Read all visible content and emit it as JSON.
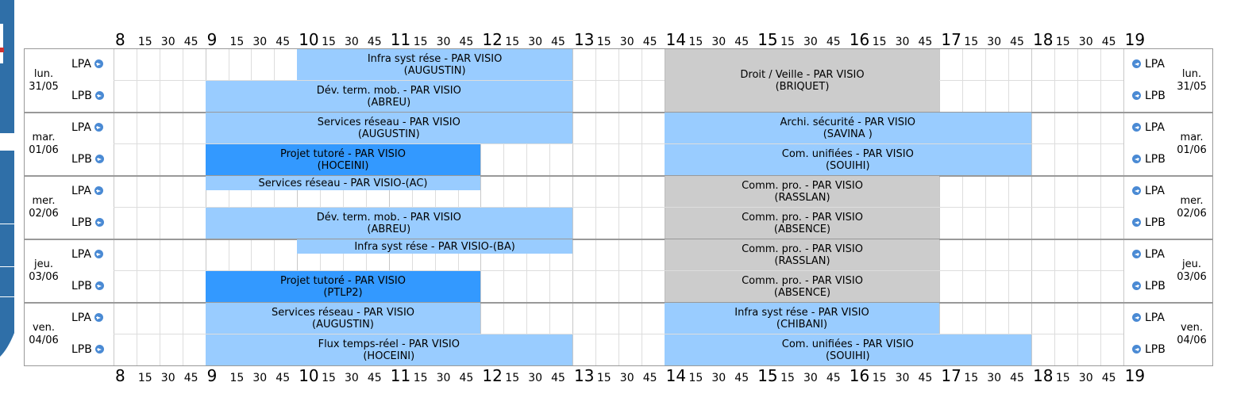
{
  "axis": {
    "ticks": [
      {
        "t": "8",
        "type": "hour"
      },
      {
        "t": "15",
        "type": "min"
      },
      {
        "t": "30",
        "type": "min"
      },
      {
        "t": "45",
        "type": "min"
      },
      {
        "t": "9",
        "type": "hour"
      },
      {
        "t": "15",
        "type": "min"
      },
      {
        "t": "30",
        "type": "min"
      },
      {
        "t": "45",
        "type": "min"
      },
      {
        "t": "10",
        "type": "hour"
      },
      {
        "t": "15",
        "type": "min"
      },
      {
        "t": "30",
        "type": "min"
      },
      {
        "t": "45",
        "type": "min"
      },
      {
        "t": "11",
        "type": "hour"
      },
      {
        "t": "15",
        "type": "min"
      },
      {
        "t": "30",
        "type": "min"
      },
      {
        "t": "45",
        "type": "min"
      },
      {
        "t": "12",
        "type": "hour"
      },
      {
        "t": "15",
        "type": "min"
      },
      {
        "t": "30",
        "type": "min"
      },
      {
        "t": "45",
        "type": "min"
      },
      {
        "t": "13",
        "type": "hour"
      },
      {
        "t": "15",
        "type": "min"
      },
      {
        "t": "30",
        "type": "min"
      },
      {
        "t": "45",
        "type": "min"
      },
      {
        "t": "14",
        "type": "hour"
      },
      {
        "t": "15",
        "type": "min"
      },
      {
        "t": "30",
        "type": "min"
      },
      {
        "t": "45",
        "type": "min"
      },
      {
        "t": "15",
        "type": "hour"
      },
      {
        "t": "15",
        "type": "min"
      },
      {
        "t": "30",
        "type": "min"
      },
      {
        "t": "45",
        "type": "min"
      },
      {
        "t": "16",
        "type": "hour"
      },
      {
        "t": "15",
        "type": "min"
      },
      {
        "t": "30",
        "type": "min"
      },
      {
        "t": "45",
        "type": "min"
      },
      {
        "t": "17",
        "type": "hour"
      },
      {
        "t": "15",
        "type": "min"
      },
      {
        "t": "30",
        "type": "min"
      },
      {
        "t": "45",
        "type": "min"
      },
      {
        "t": "18",
        "type": "hour"
      },
      {
        "t": "15",
        "type": "min"
      },
      {
        "t": "30",
        "type": "min"
      },
      {
        "t": "45",
        "type": "min"
      },
      {
        "t": "19",
        "type": "hour"
      }
    ]
  },
  "groups": [
    "LPA",
    "LPB"
  ],
  "days": [
    {
      "name": "lun.",
      "date": "31/05"
    },
    {
      "name": "mar.",
      "date": "01/06"
    },
    {
      "name": "mer.",
      "date": "02/06"
    },
    {
      "name": "jeu.",
      "date": "03/06"
    },
    {
      "name": "ven.",
      "date": "04/06"
    }
  ],
  "colors": {
    "light": "#99ccff",
    "dark": "#3399ff",
    "gray": "#cccccc",
    "grid": "#dddddd",
    "border": "#999999"
  },
  "events": [
    {
      "day": 0,
      "group": 0,
      "span": 1,
      "start": "10:00",
      "end": "13:00",
      "color": "light",
      "lines": [
        "Infra syst rése - PAR VISIO",
        "(AUGUSTIN)"
      ]
    },
    {
      "day": 0,
      "group": 1,
      "span": 1,
      "start": "9:00",
      "end": "13:00",
      "color": "light",
      "lines": [
        "Dév. term. mob. - PAR VISIO",
        "(ABREU)"
      ]
    },
    {
      "day": 0,
      "group": 0,
      "span": 2,
      "start": "14:00",
      "end": "17:00",
      "color": "gray",
      "lines": [
        "Droit / Veille - PAR VISIO",
        "(BRIQUET)"
      ]
    },
    {
      "day": 1,
      "group": 0,
      "span": 1,
      "start": "9:00",
      "end": "13:00",
      "color": "light",
      "lines": [
        "Services réseau - PAR VISIO",
        "(AUGUSTIN)"
      ]
    },
    {
      "day": 1,
      "group": 0,
      "span": 1,
      "start": "14:00",
      "end": "18:00",
      "color": "light",
      "lines": [
        "Archi. sécurité - PAR VISIO",
        "(SAVINA )"
      ]
    },
    {
      "day": 1,
      "group": 1,
      "span": 1,
      "start": "9:00",
      "end": "12:00",
      "color": "dark",
      "lines": [
        "Projet tutoré - PAR VISIO",
        "(HOCEINI)"
      ]
    },
    {
      "day": 1,
      "group": 1,
      "span": 1,
      "start": "14:00",
      "end": "18:00",
      "color": "light",
      "lines": [
        "Com. unifiées - PAR VISIO",
        "(SOUIHI)"
      ]
    },
    {
      "day": 2,
      "group": 0,
      "span": 1,
      "start": "9:00",
      "end": "12:00",
      "color": "light",
      "half": true,
      "lines": [
        "Services réseau - PAR VISIO-(AC)"
      ]
    },
    {
      "day": 2,
      "group": 0,
      "span": 1,
      "start": "14:00",
      "end": "17:00",
      "color": "gray",
      "lines": [
        "Comm. pro. - PAR VISIO",
        "(RASSLAN)"
      ]
    },
    {
      "day": 2,
      "group": 1,
      "span": 1,
      "start": "9:00",
      "end": "13:00",
      "color": "light",
      "lines": [
        "Dév. term. mob. - PAR VISIO",
        "(ABREU)"
      ]
    },
    {
      "day": 2,
      "group": 1,
      "span": 1,
      "start": "14:00",
      "end": "17:00",
      "color": "gray",
      "lines": [
        "Comm. pro. - PAR VISIO",
        "(ABSENCE)"
      ]
    },
    {
      "day": 3,
      "group": 0,
      "span": 1,
      "start": "10:00",
      "end": "13:00",
      "color": "light",
      "half": true,
      "lines": [
        "Infra syst rése - PAR VISIO-(BA)"
      ]
    },
    {
      "day": 3,
      "group": 0,
      "span": 1,
      "start": "14:00",
      "end": "17:00",
      "color": "gray",
      "lines": [
        "Comm. pro. - PAR VISIO",
        "(RASSLAN)"
      ]
    },
    {
      "day": 3,
      "group": 1,
      "span": 1,
      "start": "9:00",
      "end": "12:00",
      "color": "dark",
      "lines": [
        "Projet tutoré - PAR VISIO",
        "(PTLP2)"
      ]
    },
    {
      "day": 3,
      "group": 1,
      "span": 1,
      "start": "14:00",
      "end": "17:00",
      "color": "gray",
      "lines": [
        "Comm. pro. - PAR VISIO",
        "(ABSENCE)"
      ]
    },
    {
      "day": 4,
      "group": 0,
      "span": 1,
      "start": "9:00",
      "end": "12:00",
      "color": "light",
      "lines": [
        "Services réseau - PAR VISIO",
        "(AUGUSTIN)"
      ]
    },
    {
      "day": 4,
      "group": 0,
      "span": 1,
      "start": "14:00",
      "end": "17:00",
      "color": "light",
      "lines": [
        "Infra syst rése - PAR VISIO",
        "(CHIBANI)"
      ]
    },
    {
      "day": 4,
      "group": 1,
      "span": 1,
      "start": "9:00",
      "end": "13:00",
      "color": "light",
      "lines": [
        "Flux temps-réel - PAR VISIO",
        "(HOCEINI)"
      ]
    },
    {
      "day": 4,
      "group": 1,
      "span": 1,
      "start": "14:00",
      "end": "18:00",
      "color": "light",
      "lines": [
        "Com. unifiées - PAR VISIO",
        "(SOUIHI)"
      ]
    }
  ]
}
